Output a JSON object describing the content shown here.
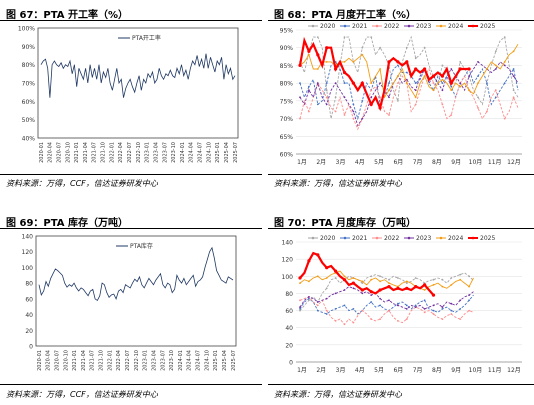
{
  "panels": [
    {
      "id": "p67",
      "title": "图 67：PTA 开工率（%）",
      "source": "资料来源：万得，CCF，信达证券研发中心"
    },
    {
      "id": "p68",
      "title": "图 68：PTA 月度开工率（%）",
      "source": "资料来源：万得，信达证券研发中心"
    },
    {
      "id": "p69",
      "title": "图 69：PTA 库存（万吨）",
      "source": "资料来源：万得，CCF，信达证券研发中心"
    },
    {
      "id": "p70",
      "title": "图 70：PTA 月度库存（万吨）",
      "source": "资料来源：万得，信达证券研发中心"
    }
  ],
  "chart_data": [
    {
      "id": "p67",
      "type": "line",
      "legend": [
        "PTA开工率"
      ],
      "yticks": [
        "40%",
        "50%",
        "60%",
        "70%",
        "80%",
        "90%",
        "100%"
      ],
      "ylim": [
        40,
        100
      ],
      "xticks": [
        "2020-01",
        "2020-04",
        "2020-07",
        "2020-10",
        "2021-01",
        "2021-04",
        "2021-07",
        "2021-10",
        "2022-01",
        "2022-04",
        "2022-07",
        "2022-10",
        "2023-01",
        "2023-04",
        "2023-07",
        "2023-10",
        "2024-01",
        "2024-04",
        "2024-07",
        "2024-10",
        "2025-01",
        "2025-04",
        "2025-07"
      ],
      "series": [
        {
          "name": "PTA开工率",
          "color": "#1f3864",
          "values": [
            80,
            82,
            83,
            78,
            62,
            80,
            82,
            80,
            79,
            81,
            78,
            80,
            79,
            82,
            75,
            80,
            68,
            78,
            75,
            72,
            78,
            70,
            80,
            73,
            78,
            72,
            80,
            70,
            76,
            73,
            78,
            70,
            66,
            72,
            78,
            70,
            72,
            62,
            67,
            70,
            72,
            68,
            65,
            70,
            74,
            66,
            72,
            70,
            75,
            73,
            76,
            70,
            72,
            78,
            74,
            72,
            75,
            74,
            77,
            74,
            73,
            78,
            75,
            80,
            74,
            77,
            72,
            78,
            82,
            80,
            85,
            79,
            83,
            78,
            86,
            78,
            84,
            80,
            76,
            82,
            80,
            84,
            72,
            80,
            75,
            78,
            72,
            74
          ]
        }
      ]
    },
    {
      "id": "p68",
      "type": "line",
      "legend": [
        "2020",
        "2021",
        "2022",
        "2023",
        "2024",
        "2025"
      ],
      "yticks": [
        "60%",
        "65%",
        "70%",
        "75%",
        "80%",
        "85%",
        "90%",
        "95%"
      ],
      "ylim": [
        60,
        95
      ],
      "xticks": [
        "1月",
        "2月",
        "3月",
        "4月",
        "5月",
        "6月",
        "7月",
        "8月",
        "9月",
        "10月",
        "11月",
        "12月"
      ],
      "series": [
        {
          "name": "2020",
          "color": "#a6a6a6",
          "values": [
            86,
            83,
            89,
            93,
            93,
            90,
            78,
            70,
            76,
            85,
            93,
            93,
            86,
            83,
            90,
            93,
            93,
            88,
            90,
            88,
            85,
            78,
            75,
            86,
            90,
            93,
            87,
            88,
            90,
            85,
            82,
            80,
            85,
            84,
            80,
            80,
            86,
            84,
            82,
            78,
            76,
            74,
            80,
            85,
            89,
            92,
            93,
            85,
            78,
            76
          ]
        },
        {
          "name": "2021",
          "color": "#4472c4",
          "values": [
            80,
            76,
            79,
            81,
            74,
            75,
            80,
            85,
            86,
            84,
            80,
            80,
            74,
            70,
            75,
            80,
            78,
            82,
            74,
            76,
            80,
            84,
            85,
            83,
            83,
            82,
            80,
            81,
            84,
            80,
            78,
            82,
            80,
            82,
            79,
            76,
            80,
            82,
            84,
            80,
            82,
            84,
            80,
            74,
            76,
            78,
            80,
            82,
            84,
            78
          ]
        },
        {
          "name": "2022",
          "color": "#ff8c8c",
          "values": [
            70,
            75,
            72,
            76,
            80,
            78,
            76,
            73,
            72,
            76,
            71,
            74,
            70,
            67,
            70,
            74,
            78,
            79,
            76,
            72,
            71,
            76,
            80,
            82,
            80,
            72,
            74,
            78,
            82,
            84,
            80,
            78,
            74,
            70,
            71,
            76,
            80,
            82,
            78,
            76,
            73,
            70,
            72,
            76,
            78,
            74,
            70,
            72,
            76,
            73
          ]
        },
        {
          "name": "2023",
          "color": "#7030a0",
          "values": [
            76,
            74,
            78,
            76,
            80,
            76,
            74,
            78,
            80,
            78,
            76,
            74,
            72,
            68,
            70,
            72,
            76,
            78,
            80,
            78,
            76,
            80,
            82,
            80,
            81,
            79,
            78,
            82,
            84,
            80,
            82,
            80,
            78,
            82,
            84,
            82,
            80,
            78,
            82,
            84,
            86,
            85,
            84,
            83,
            84,
            86,
            85,
            84,
            82,
            80
          ]
        },
        {
          "name": "2024",
          "color": "#f39c12",
          "values": [
            85,
            86,
            88,
            84,
            84,
            86,
            86,
            86,
            85,
            86,
            86,
            87,
            86,
            87,
            88,
            86,
            80,
            82,
            84,
            76,
            78,
            80,
            82,
            84,
            80,
            78,
            76,
            80,
            82,
            79,
            78,
            80,
            81,
            80,
            78,
            80,
            79,
            80,
            78,
            77,
            80,
            82,
            84,
            86,
            85,
            84,
            86,
            88,
            89,
            91
          ]
        },
        {
          "name": "2025",
          "color": "#ff0000",
          "values": [
            85,
            92,
            89,
            91,
            88,
            85,
            90,
            90,
            84,
            86,
            83,
            82,
            80,
            78,
            80,
            77,
            74,
            76,
            73,
            78,
            86,
            87,
            86,
            85,
            86,
            82,
            84,
            83,
            84,
            81,
            82,
            83,
            82,
            84,
            80,
            82,
            84,
            84,
            84
          ]
        }
      ]
    },
    {
      "id": "p69",
      "type": "line",
      "legend": [
        "PTA库存"
      ],
      "yticks": [
        "0",
        "20",
        "40",
        "60",
        "80",
        "100",
        "120",
        "140"
      ],
      "ylim": [
        0,
        140
      ],
      "xticks": [
        "2020-01",
        "2020-04",
        "2020-07",
        "2020-10",
        "2021-01",
        "2021-04",
        "2021-07",
        "2021-10",
        "2022-01",
        "2022-04",
        "2022-07",
        "2022-10",
        "2023-01",
        "2023-04",
        "2023-07",
        "2023-10",
        "2024-01",
        "2024-04",
        "2024-07",
        "2024-10",
        "2025-01",
        "2025-04",
        "2025-07"
      ],
      "series": [
        {
          "name": "PTA库存",
          "color": "#1f3864",
          "values": [
            78,
            65,
            70,
            82,
            76,
            86,
            92,
            98,
            96,
            93,
            90,
            80,
            75,
            78,
            76,
            80,
            74,
            70,
            74,
            72,
            68,
            64,
            70,
            72,
            60,
            58,
            64,
            80,
            78,
            68,
            62,
            65,
            66,
            60,
            70,
            72,
            68,
            78,
            76,
            74,
            80,
            85,
            82,
            88,
            78,
            74,
            80,
            86,
            82,
            78,
            84,
            88,
            92,
            78,
            74,
            80,
            78,
            68,
            72,
            90,
            84,
            80,
            86,
            78,
            82,
            86,
            90,
            76,
            82,
            84,
            88,
            100,
            110,
            120,
            125,
            112,
            96,
            90,
            84,
            82,
            80,
            88,
            86,
            84
          ]
        }
      ]
    },
    {
      "id": "p70",
      "type": "line",
      "legend": [
        "2020",
        "2021",
        "2022",
        "2023",
        "2024",
        "2025"
      ],
      "yticks": [
        "0",
        "20",
        "40",
        "60",
        "80",
        "100",
        "120",
        "140"
      ],
      "ylim": [
        0,
        140
      ],
      "xticks": [
        "1月",
        "2月",
        "3月",
        "4月",
        "5月",
        "6月",
        "7月",
        "8月",
        "9月",
        "10月",
        "11月",
        "12月"
      ],
      "series": [
        {
          "name": "2020",
          "color": "#a6a6a6",
          "values": [
            60,
            66,
            72,
            76,
            70,
            80,
            86,
            96,
            98,
            92,
            96,
            100,
            98,
            96,
            92,
            98,
            100,
            102,
            100,
            98,
            96,
            100,
            98,
            96,
            92,
            94,
            98,
            96,
            92,
            95,
            96,
            98,
            96,
            92,
            98,
            100,
            102,
            104,
            100,
            95
          ]
        },
        {
          "name": "2021",
          "color": "#4472c4",
          "values": [
            62,
            70,
            74,
            70,
            60,
            58,
            56,
            60,
            62,
            64,
            66,
            60,
            62,
            56,
            60,
            66,
            70,
            64,
            66,
            62,
            60,
            64,
            68,
            70,
            66,
            62,
            66,
            70,
            72,
            62,
            60,
            58,
            62,
            64,
            60,
            58,
            62,
            66,
            72,
            78
          ]
        },
        {
          "name": "2022",
          "color": "#ff8c8c",
          "values": [
            72,
            74,
            76,
            70,
            66,
            72,
            60,
            52,
            48,
            50,
            44,
            50,
            46,
            54,
            60,
            56,
            50,
            48,
            50,
            56,
            60,
            52,
            48,
            46,
            50,
            60,
            64,
            62,
            58,
            60,
            56,
            52,
            50,
            54,
            56,
            52,
            50,
            56,
            60,
            58
          ]
        },
        {
          "name": "2023",
          "color": "#7030a0",
          "values": [
            64,
            72,
            76,
            74,
            70,
            72,
            74,
            78,
            80,
            82,
            84,
            88,
            86,
            84,
            80,
            82,
            78,
            80,
            74,
            70,
            72,
            68,
            66,
            64,
            62,
            66,
            64,
            66,
            62,
            64,
            66,
            68,
            64,
            70,
            68,
            66,
            72,
            76,
            78,
            82
          ]
        },
        {
          "name": "2024",
          "color": "#f39c12",
          "values": [
            92,
            96,
            94,
            98,
            100,
            96,
            98,
            102,
            104,
            106,
            100,
            96,
            98,
            96,
            94,
            90,
            96,
            98,
            94,
            96,
            92,
            90,
            88,
            92,
            94,
            92,
            88,
            86,
            84,
            88,
            90,
            92,
            88,
            86,
            90,
            94,
            96,
            92,
            88,
            98
          ]
        },
        {
          "name": "2025",
          "color": "#ff0000",
          "values": [
            98,
            104,
            118,
            127,
            125,
            116,
            110,
            112,
            106,
            100,
            96,
            90,
            92,
            88,
            84,
            86,
            82,
            80,
            84,
            86,
            88,
            84,
            86,
            84,
            86,
            84,
            88,
            86,
            90,
            84,
            78
          ]
        }
      ]
    }
  ]
}
